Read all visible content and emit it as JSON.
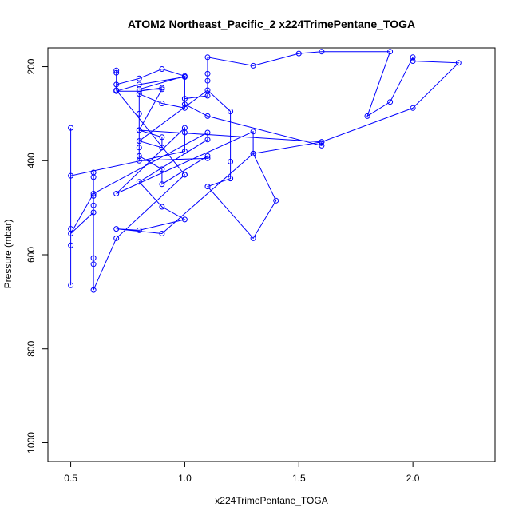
{
  "chart_data": {
    "type": "line",
    "title": "ATOM2 Northeast_Pacific_2 x224TrimePentane_TOGA",
    "xlabel": "x224TrimePentane_TOGA",
    "ylabel": "Pressure (mbar)",
    "xlim": [
      0.4,
      2.36
    ],
    "ylim": [
      1040,
      160
    ],
    "y_reversed": true,
    "x_ticks": [
      0.5,
      1.0,
      1.5,
      2.0
    ],
    "x_tick_labels": [
      "0.5",
      "1.0",
      "1.5",
      "2.0"
    ],
    "y_ticks": [
      200,
      400,
      600,
      800,
      1000
    ],
    "y_tick_labels": [
      "200",
      "400",
      "600",
      "800",
      "1000"
    ],
    "grid": false,
    "series": [
      {
        "color": "#0000ff",
        "marker": "open-circle",
        "points": [
          [
            0.5,
            665
          ],
          [
            0.5,
            580
          ],
          [
            0.5,
            545
          ],
          [
            0.5,
            330
          ],
          [
            0.5,
            432
          ],
          [
            1.0,
            380
          ],
          [
            1.0,
            340
          ],
          [
            1.0,
            330
          ],
          [
            0.7,
            470
          ],
          [
            1.3,
            338
          ],
          [
            1.3,
            385
          ],
          [
            0.9,
            555
          ],
          [
            0.7,
            545
          ],
          [
            0.8,
            548
          ],
          [
            1.0,
            525
          ],
          [
            0.9,
            498
          ],
          [
            0.8,
            445
          ],
          [
            1.1,
            355
          ],
          [
            1.1,
            340
          ],
          [
            0.6,
            470
          ],
          [
            0.5,
            555
          ],
          [
            0.6,
            510
          ],
          [
            0.6,
            495
          ],
          [
            0.6,
            475
          ],
          [
            0.6,
            435
          ],
          [
            0.6,
            425
          ],
          [
            0.6,
            620
          ],
          [
            0.6,
            607
          ],
          [
            0.6,
            675
          ],
          [
            0.7,
            565
          ],
          [
            1.0,
            430
          ],
          [
            1.0,
            430
          ],
          [
            0.7,
            250
          ],
          [
            0.7,
            208
          ],
          [
            0.7,
            213
          ],
          [
            0.7,
            238
          ],
          [
            0.8,
            225
          ],
          [
            0.9,
            205
          ],
          [
            1.0,
            220
          ],
          [
            0.8,
            248
          ],
          [
            0.9,
            248
          ],
          [
            0.8,
            335
          ],
          [
            0.9,
            350
          ],
          [
            0.9,
            372
          ],
          [
            0.8,
            358
          ],
          [
            1.1,
            250
          ],
          [
            1.2,
            295
          ],
          [
            1.2,
            402
          ],
          [
            1.2,
            438
          ],
          [
            1.1,
            455
          ],
          [
            1.3,
            565
          ],
          [
            1.4,
            485
          ],
          [
            1.3,
            385
          ],
          [
            1.6,
            360
          ],
          [
            1.6,
            368
          ],
          [
            1.1,
            305
          ],
          [
            1.0,
            280
          ],
          [
            1.0,
            268
          ],
          [
            1.1,
            262
          ],
          [
            1.1,
            230
          ],
          [
            1.1,
            215
          ],
          [
            1.1,
            180
          ],
          [
            1.3,
            198
          ],
          [
            1.5,
            172
          ],
          [
            1.6,
            168
          ],
          [
            1.9,
            168
          ],
          [
            1.8,
            305
          ],
          [
            1.9,
            275
          ],
          [
            2.0,
            180
          ],
          [
            2.0,
            188
          ],
          [
            2.2,
            192
          ],
          [
            2.0,
            288
          ],
          [
            1.6,
            360
          ],
          [
            0.8,
            335
          ],
          [
            0.8,
            372
          ],
          [
            0.8,
            390
          ],
          [
            0.9,
            418
          ],
          [
            0.9,
            450
          ],
          [
            1.1,
            390
          ],
          [
            1.1,
            395
          ],
          [
            0.8,
            400
          ],
          [
            0.8,
            300
          ],
          [
            0.8,
            258
          ],
          [
            0.9,
            278
          ],
          [
            1.0,
            288
          ],
          [
            1.0,
            222
          ],
          [
            0.8,
            238
          ],
          [
            0.7,
            252
          ],
          [
            0.8,
            252
          ],
          [
            0.9,
            245
          ]
        ]
      }
    ]
  }
}
